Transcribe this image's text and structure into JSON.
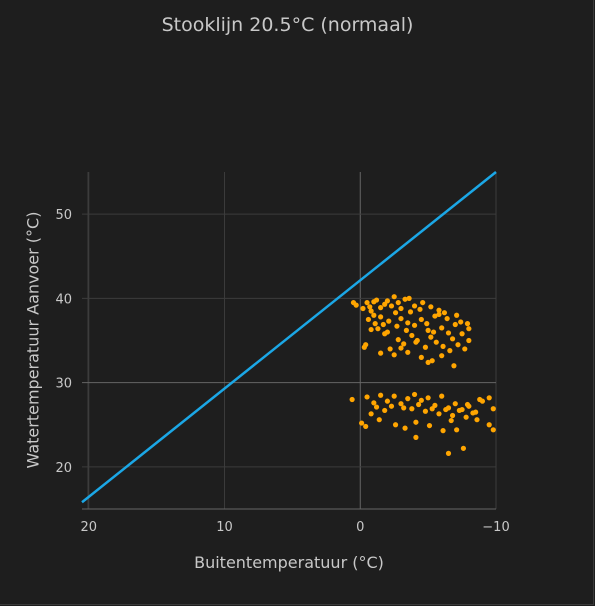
{
  "chart_data": {
    "type": "scatter",
    "title": "Stooklijn 20.5°C (normaal)",
    "xlabel": "Buitentemperatuur (°C)",
    "ylabel": "Watertemperatuur Aanvoer (°C)",
    "xlim": [
      20.5,
      -10
    ],
    "ylim": [
      15,
      55
    ],
    "x_ticks": [
      20,
      10,
      0,
      -10
    ],
    "x_tick_labels": [
      "20",
      "10",
      "0",
      "−10"
    ],
    "y_ticks": [
      20,
      30,
      40,
      50
    ],
    "y_tick_labels": [
      "20",
      "30",
      "40",
      "50"
    ],
    "grid": true,
    "colors": {
      "line": "#1ba7e6",
      "points": "#ffa500",
      "background": "#1e1e1e",
      "grid": "#3c3c3c",
      "zero_line": "#666666"
    },
    "line": {
      "x": [
        20.5,
        -10
      ],
      "y": [
        15.8,
        55
      ]
    },
    "points": [
      [
        -0.5,
        39.5
      ],
      [
        -0.7,
        39.0
      ],
      [
        0.5,
        39.5
      ],
      [
        -0.2,
        38.8
      ],
      [
        0.3,
        39.2
      ],
      [
        -1.0,
        39.6
      ],
      [
        -1.5,
        38.9
      ],
      [
        -1.2,
        39.8
      ],
      [
        -0.8,
        38.5
      ],
      [
        -1.8,
        39.3
      ],
      [
        -2.0,
        39.7
      ],
      [
        -2.5,
        40.2
      ],
      [
        -2.8,
        39.5
      ],
      [
        -3.0,
        38.8
      ],
      [
        -3.3,
        39.9
      ],
      [
        -3.6,
        40.0
      ],
      [
        -4.0,
        39.1
      ],
      [
        -4.4,
        38.7
      ],
      [
        -1.0,
        38.0
      ],
      [
        -1.5,
        37.8
      ],
      [
        -2.1,
        37.3
      ],
      [
        -2.6,
        38.3
      ],
      [
        -3.0,
        37.6
      ],
      [
        -3.5,
        37.1
      ],
      [
        -4.0,
        36.8
      ],
      [
        -4.5,
        37.5
      ],
      [
        -5.0,
        36.2
      ],
      [
        -5.5,
        37.9
      ],
      [
        -6.0,
        36.5
      ],
      [
        -6.5,
        35.9
      ],
      [
        -5.8,
        38.1
      ],
      [
        -6.2,
        38.3
      ],
      [
        -7.0,
        36.9
      ],
      [
        -6.8,
        35.2
      ],
      [
        -7.5,
        35.8
      ],
      [
        -8.0,
        36.4
      ],
      [
        -5.2,
        35.4
      ],
      [
        -5.6,
        34.8
      ],
      [
        -4.8,
        34.2
      ],
      [
        -4.2,
        35.0
      ],
      [
        -3.8,
        35.6
      ],
      [
        -3.2,
        34.6
      ],
      [
        -2.8,
        35.1
      ],
      [
        -2.2,
        34.0
      ],
      [
        -1.8,
        35.8
      ],
      [
        -1.3,
        36.4
      ],
      [
        -0.8,
        36.3
      ],
      [
        -0.4,
        34.5
      ],
      [
        -0.3,
        34.2
      ],
      [
        -1.5,
        33.5
      ],
      [
        -2.5,
        33.3
      ],
      [
        -3.5,
        33.6
      ],
      [
        -4.5,
        33.0
      ],
      [
        -5.3,
        32.6
      ],
      [
        -6.0,
        33.2
      ],
      [
        -6.6,
        33.8
      ],
      [
        -7.2,
        34.5
      ],
      [
        -7.7,
        34.0
      ],
      [
        -8.0,
        35.0
      ],
      [
        -6.9,
        32.0
      ],
      [
        -5.0,
        32.4
      ],
      [
        -3.0,
        34.1
      ],
      [
        -2.0,
        36.0
      ],
      [
        -4.6,
        39.5
      ],
      [
        -5.2,
        39.0
      ],
      [
        -5.8,
        38.6
      ],
      [
        -6.4,
        37.6
      ],
      [
        -7.1,
        38.0
      ],
      [
        -3.7,
        38.4
      ],
      [
        -2.3,
        39.1
      ],
      [
        -1.1,
        37.0
      ],
      [
        -0.6,
        37.5
      ],
      [
        -4.9,
        37.0
      ],
      [
        -5.4,
        36.0
      ],
      [
        -6.1,
        34.3
      ],
      [
        -7.4,
        37.2
      ],
      [
        -7.9,
        37.0
      ],
      [
        -3.4,
        36.2
      ],
      [
        -2.7,
        36.7
      ],
      [
        -1.7,
        36.9
      ],
      [
        -4.1,
        34.8
      ],
      [
        0.6,
        28.0
      ],
      [
        -0.5,
        28.3
      ],
      [
        -1.0,
        27.6
      ],
      [
        -1.5,
        28.5
      ],
      [
        -2.0,
        27.8
      ],
      [
        -2.5,
        28.4
      ],
      [
        -3.0,
        27.5
      ],
      [
        -3.5,
        28.1
      ],
      [
        -4.0,
        28.6
      ],
      [
        -4.5,
        27.9
      ],
      [
        -5.0,
        28.2
      ],
      [
        -5.5,
        27.3
      ],
      [
        -6.0,
        28.4
      ],
      [
        -6.5,
        27.0
      ],
      [
        -7.0,
        27.5
      ],
      [
        -7.5,
        26.8
      ],
      [
        -8.0,
        27.2
      ],
      [
        -8.5,
        26.5
      ],
      [
        -9.0,
        27.8
      ],
      [
        -9.5,
        28.2
      ],
      [
        -3.2,
        27.0
      ],
      [
        -3.8,
        26.9
      ],
      [
        -4.3,
        27.4
      ],
      [
        -4.8,
        26.6
      ],
      [
        -5.3,
        26.9
      ],
      [
        -5.8,
        26.3
      ],
      [
        -6.3,
        26.8
      ],
      [
        -6.8,
        26.1
      ],
      [
        -7.3,
        26.7
      ],
      [
        -7.8,
        25.9
      ],
      [
        -8.3,
        26.4
      ],
      [
        -2.3,
        27.2
      ],
      [
        -1.8,
        26.7
      ],
      [
        -1.2,
        27.1
      ],
      [
        -0.8,
        26.3
      ],
      [
        -0.1,
        25.2
      ],
      [
        -0.4,
        24.8
      ],
      [
        -1.4,
        25.6
      ],
      [
        -2.6,
        25.0
      ],
      [
        -3.3,
        24.6
      ],
      [
        -4.1,
        25.3
      ],
      [
        -5.1,
        24.9
      ],
      [
        -6.1,
        24.3
      ],
      [
        -7.1,
        24.4
      ],
      [
        -7.6,
        22.2
      ],
      [
        -6.5,
        21.6
      ],
      [
        -4.1,
        23.5
      ],
      [
        -9.8,
        26.9
      ],
      [
        -9.5,
        25.0
      ],
      [
        -9.8,
        24.4
      ],
      [
        -8.8,
        28.0
      ],
      [
        -8.6,
        25.6
      ],
      [
        -7.9,
        27.4
      ],
      [
        -6.7,
        25.5
      ]
    ]
  }
}
